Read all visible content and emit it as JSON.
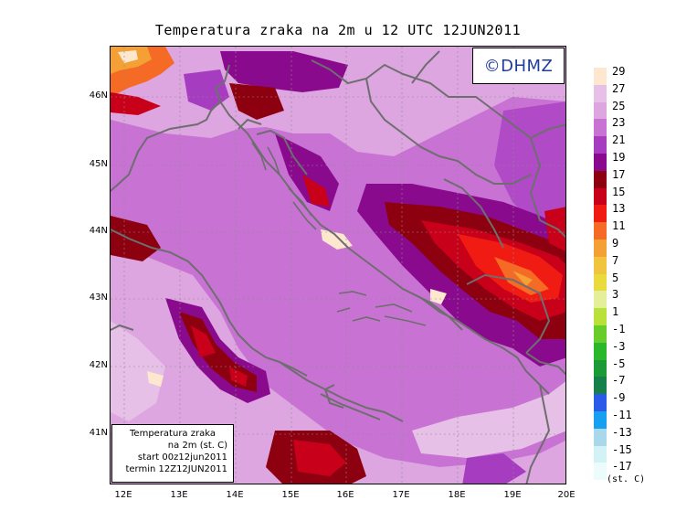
{
  "title": "Temperatura zraka na 2m u 12 UTC 12JUN2011",
  "copyright": "©DHMZ",
  "info_box": {
    "line1": "Temperatura zraka",
    "line2": "na 2m (st. C)",
    "line3": "start 00z12jun2011",
    "line4": "termin 12Z12JUN2011"
  },
  "lat_labels": [
    "46N",
    "45N",
    "44N",
    "43N",
    "42N",
    "41N"
  ],
  "lon_labels": [
    "12E",
    "13E",
    "14E",
    "15E",
    "16E",
    "17E",
    "18E",
    "19E",
    "20E"
  ],
  "legend": {
    "unit": "(st. C)",
    "labels": [
      "29",
      "27",
      "25",
      "23",
      "21",
      "19",
      "17",
      "15",
      "13",
      "11",
      "9",
      "7",
      "5",
      "3",
      "1",
      "-1",
      "-3",
      "-5",
      "-7",
      "-9",
      "-11",
      "-13",
      "-15",
      "-17"
    ],
    "colors": [
      "#fde8cf",
      "#e6c0e6",
      "#dda6e0",
      "#c872d4",
      "#a63cc0",
      "#8a0a8e",
      "#8c0010",
      "#c8001a",
      "#f01c14",
      "#f56a24",
      "#f4a034",
      "#f0c43c",
      "#eada3c",
      "#e4ef9a",
      "#b8e23a",
      "#68cc2a",
      "#2ab82a",
      "#1c9a36",
      "#16804a",
      "#2c5ae8",
      "#18a0f0",
      "#a8d8ea",
      "#d2f2f6",
      "#ecfcfc"
    ]
  },
  "map": {
    "background_color": "#c872d4",
    "land_color": "#dda6e0",
    "warm_colors": [
      "#a63cc0",
      "#8a0a8e",
      "#8c0010",
      "#c8001a",
      "#f01c14",
      "#f56a24"
    ],
    "coast_color": "#6e6e6e"
  }
}
